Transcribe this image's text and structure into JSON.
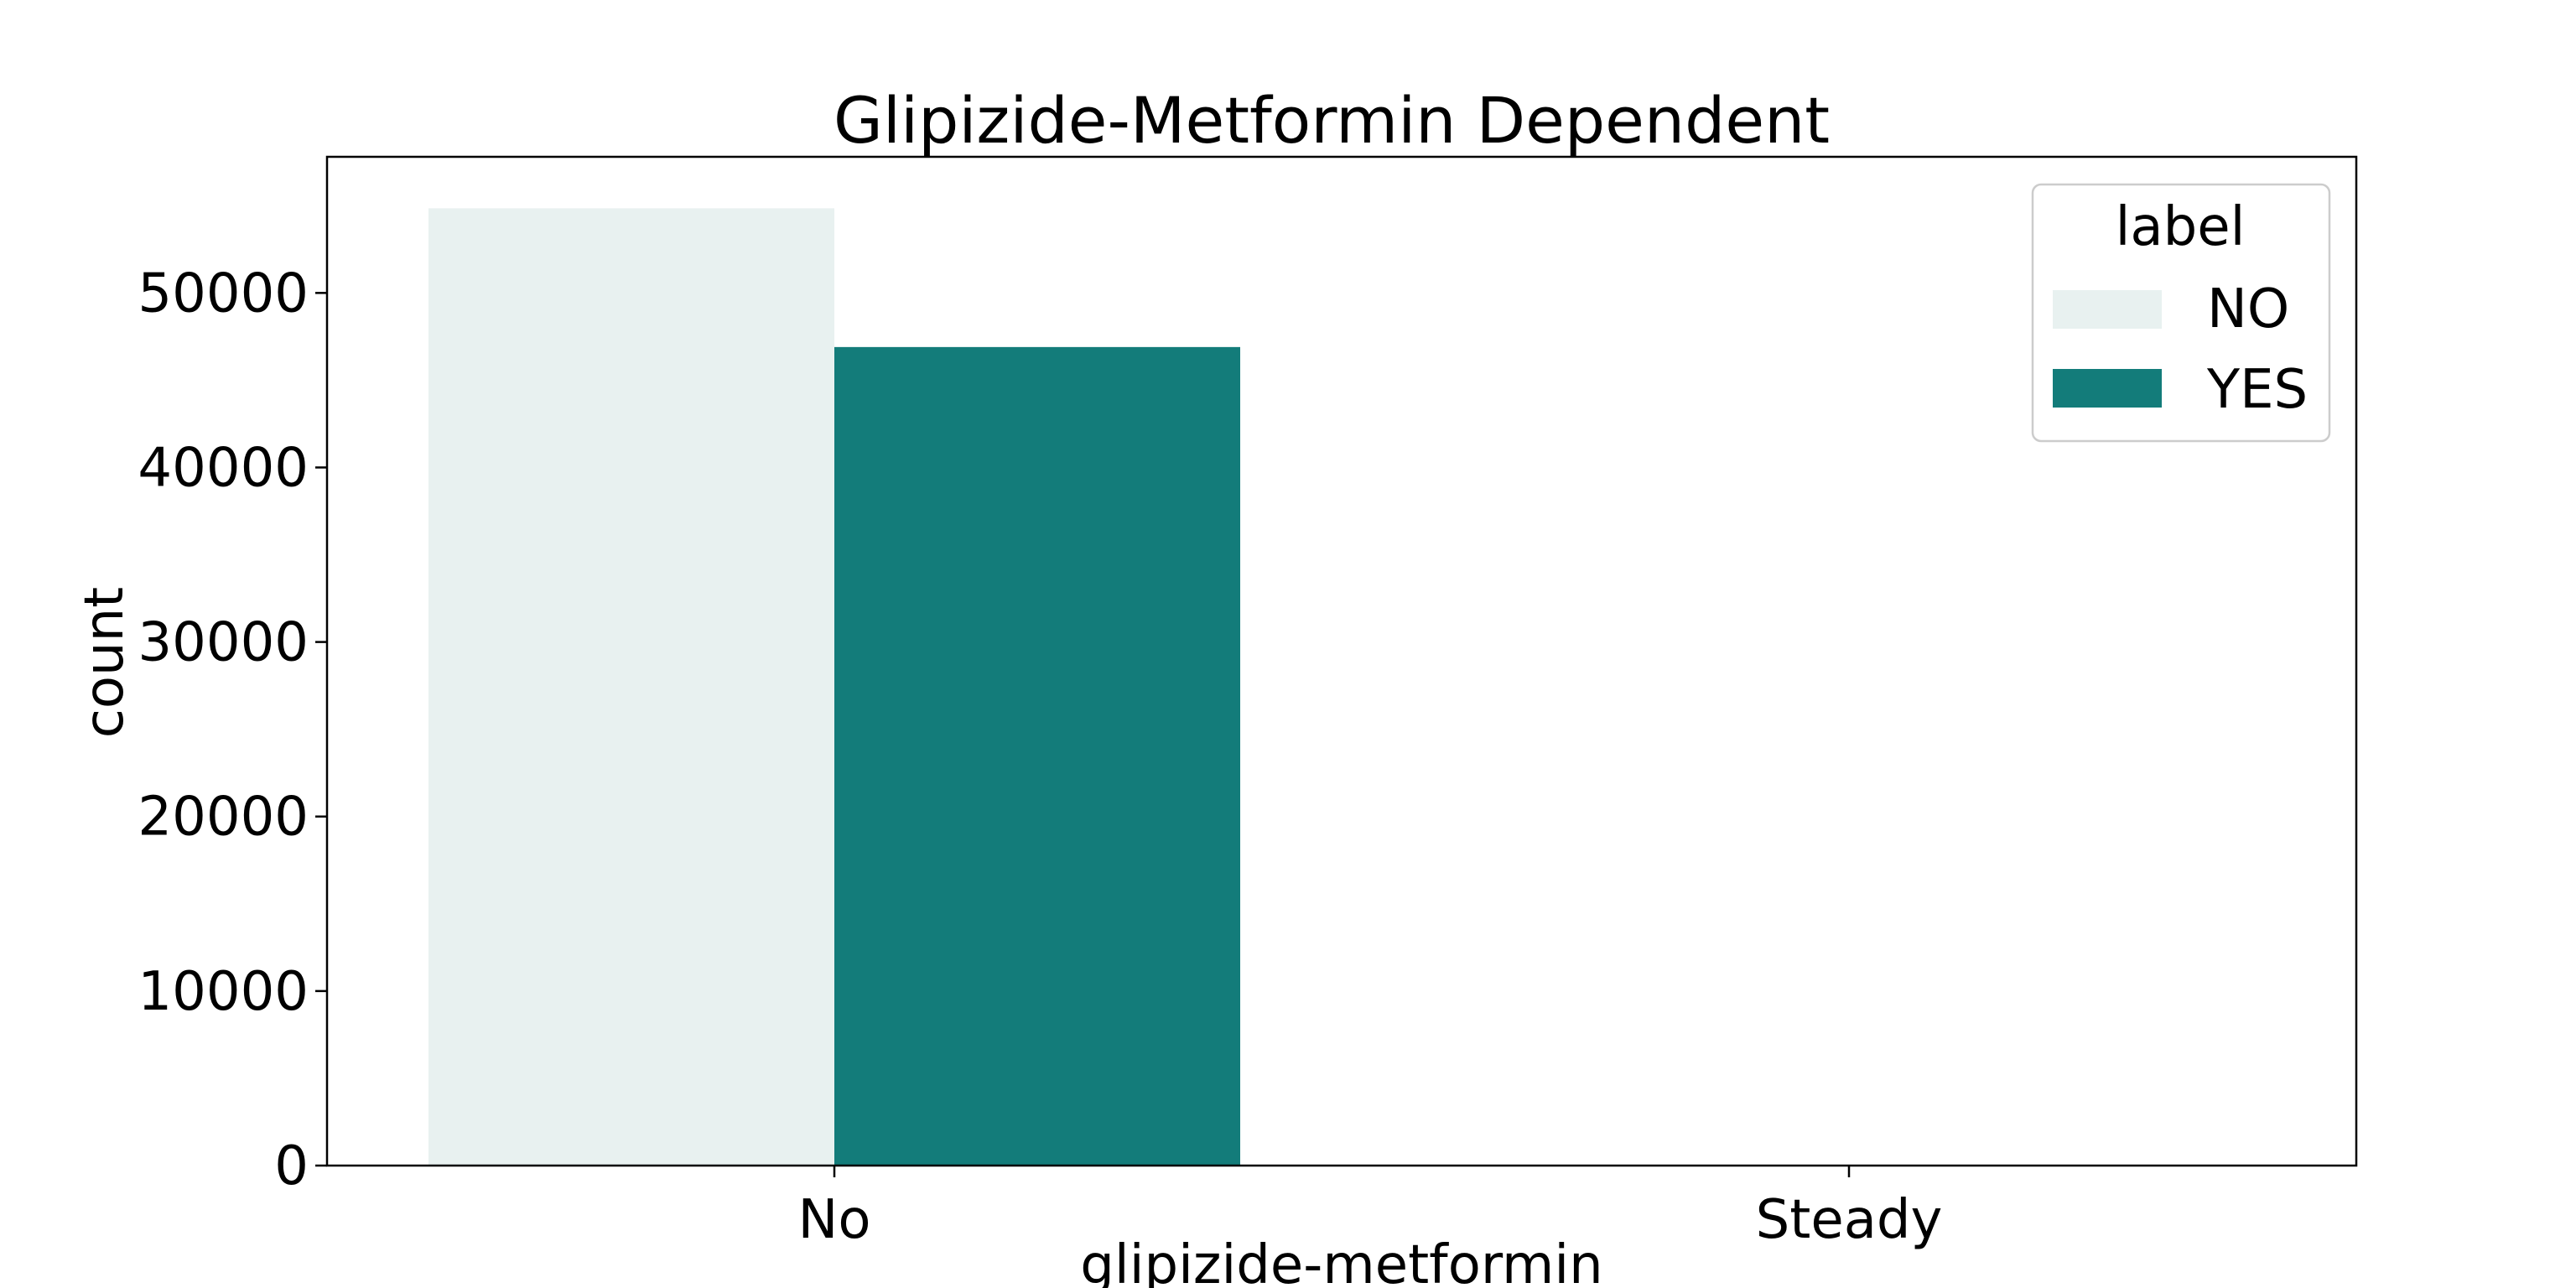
{
  "chart_data": {
    "type": "bar",
    "title": "Glipizide-Metformin Dependent",
    "xlabel": "glipizide-metformin",
    "ylabel": "count",
    "categories": [
      "No",
      "Steady"
    ],
    "series": [
      {
        "name": "NO",
        "values": [
          54850,
          0
        ]
      },
      {
        "name": "YES",
        "values": [
          46900,
          0
        ]
      }
    ],
    "ylim": [
      0,
      57800
    ],
    "yticks": [
      0,
      10000,
      20000,
      30000,
      40000,
      50000
    ],
    "ytick_labels": [
      "0",
      "10000",
      "20000",
      "30000",
      "40000",
      "50000"
    ],
    "legend": {
      "title": "label",
      "position": "top-right"
    },
    "colors": {
      "NO": "#e8f1f0",
      "YES": "#137c7a",
      "axis": "#000000",
      "legend_border": "#cccccc"
    },
    "grid": false
  }
}
